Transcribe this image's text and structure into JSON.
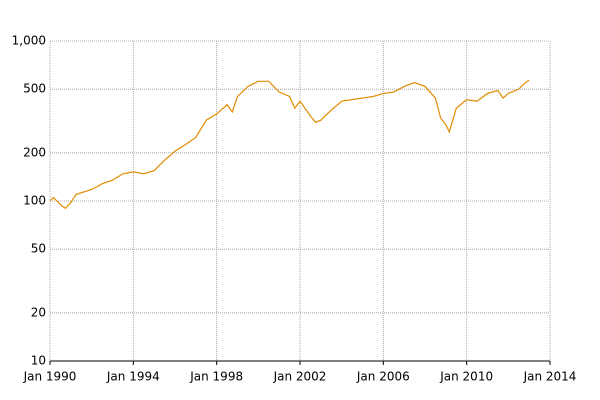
{
  "chart_data": {
    "type": "line",
    "log_y": true,
    "grid": true,
    "xlim": [
      "1990-01",
      "2014-01"
    ],
    "xticks": [
      {
        "value": "1990-01",
        "label": "Jan 1990"
      },
      {
        "value": "1994-01",
        "label": "Jan 1994"
      },
      {
        "value": "1998-01",
        "label": "Jan 1998"
      },
      {
        "value": "2002-01",
        "label": "Jan 2002"
      },
      {
        "value": "2006-01",
        "label": "Jan 2006"
      },
      {
        "value": "2010-01",
        "label": "Jan 2010"
      },
      {
        "value": "2014-01",
        "label": "Jan 2014"
      }
    ],
    "ylim": [
      10,
      1000
    ],
    "yticks": [
      10,
      20,
      50,
      100,
      200,
      500,
      {
        "value": 1000,
        "label": "1,000"
      }
    ],
    "x": [
      "1990-01",
      "1990-03",
      "1990-08",
      "1990-10",
      "1991-01",
      "1991-04",
      "1992-01",
      "1992-07",
      "1993-01",
      "1993-07",
      "1994-01",
      "1994-07",
      "1995-01",
      "1995-07",
      "1996-01",
      "1996-07",
      "1997-01",
      "1997-07",
      "1998-01",
      "1998-07",
      "1998-10",
      "1999-01",
      "1999-07",
      "2000-01",
      "2000-07",
      "2001-01",
      "2001-07",
      "2001-10",
      "2002-01",
      "2002-07",
      "2002-10",
      "2003-01",
      "2003-07",
      "2004-01",
      "2004-07",
      "2005-01",
      "2005-07",
      "2006-01",
      "2006-07",
      "2007-01",
      "2007-07",
      "2008-01",
      "2008-07",
      "2008-10",
      "2009-01",
      "2009-03",
      "2009-07",
      "2010-01",
      "2010-07",
      "2011-01",
      "2011-07",
      "2011-10",
      "2012-01",
      "2012-07",
      "2012-10",
      "2013-01"
    ],
    "series": [
      {
        "color": "#e08c00",
        "values": [
          100,
          105,
          93,
          90,
          98,
          110,
          118,
          128,
          135,
          148,
          152,
          148,
          155,
          180,
          205,
          225,
          250,
          320,
          350,
          400,
          360,
          450,
          520,
          560,
          560,
          480,
          450,
          380,
          420,
          340,
          310,
          320,
          370,
          420,
          430,
          440,
          450,
          470,
          480,
          520,
          550,
          520,
          440,
          330,
          300,
          270,
          380,
          430,
          420,
          470,
          490,
          440,
          470,
          500,
          540,
          570
        ]
      }
    ]
  }
}
